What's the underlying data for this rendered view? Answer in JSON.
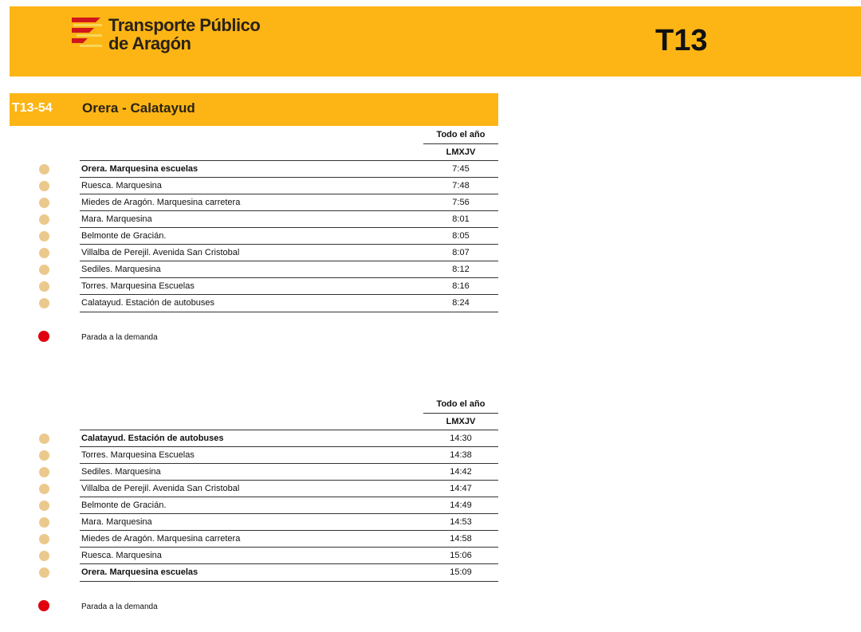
{
  "header": {
    "brand_line1": "Transporte Público",
    "brand_line2": "de Aragón",
    "line_code": "T13",
    "colors": {
      "accent": "#FDB515",
      "logo_red": "#D0161B"
    }
  },
  "route": {
    "code": "T13-54",
    "name": "Orera - Calatayud"
  },
  "tables": [
    {
      "period": "Todo el año",
      "days": "LMXJV",
      "rows": [
        {
          "stop": "Orera. Marquesina escuelas",
          "time": "7:45",
          "bold": true
        },
        {
          "stop": "Ruesca. Marquesina",
          "time": "7:48"
        },
        {
          "stop": "Miedes de Aragón. Marquesina carretera",
          "time": "7:56"
        },
        {
          "stop": "Mara. Marquesina",
          "time": "8:01"
        },
        {
          "stop": "Belmonte de Gracián.",
          "time": "8:05"
        },
        {
          "stop": "Villalba de Perejil. Avenida San Cristobal",
          "time": "8:07"
        },
        {
          "stop": "Sediles. Marquesina",
          "time": "8:12"
        },
        {
          "stop": "Torres. Marquesina Escuelas",
          "time": "8:16"
        },
        {
          "stop": "Calatayud. Estación de autobuses",
          "time": "8:24"
        }
      ],
      "legend": "Parada a la demanda"
    },
    {
      "period": "Todo el año",
      "days": "LMXJV",
      "rows": [
        {
          "stop": "Calatayud. Estación de autobuses",
          "time": "14:30",
          "bold": true
        },
        {
          "stop": "Torres. Marquesina Escuelas",
          "time": "14:38"
        },
        {
          "stop": "Sediles. Marquesina",
          "time": "14:42"
        },
        {
          "stop": "Villalba de Perejil. Avenida San Cristobal",
          "time": "14:47"
        },
        {
          "stop": "Belmonte de Gracián.",
          "time": "14:49"
        },
        {
          "stop": "Mara. Marquesina",
          "time": "14:53"
        },
        {
          "stop": "Miedes de Aragón. Marquesina carretera",
          "time": "14:58"
        },
        {
          "stop": "Ruesca. Marquesina",
          "time": "15:06"
        },
        {
          "stop": "Orera. Marquesina escuelas",
          "time": "15:09",
          "bold": true
        }
      ],
      "legend": "Parada a la demanda"
    }
  ]
}
